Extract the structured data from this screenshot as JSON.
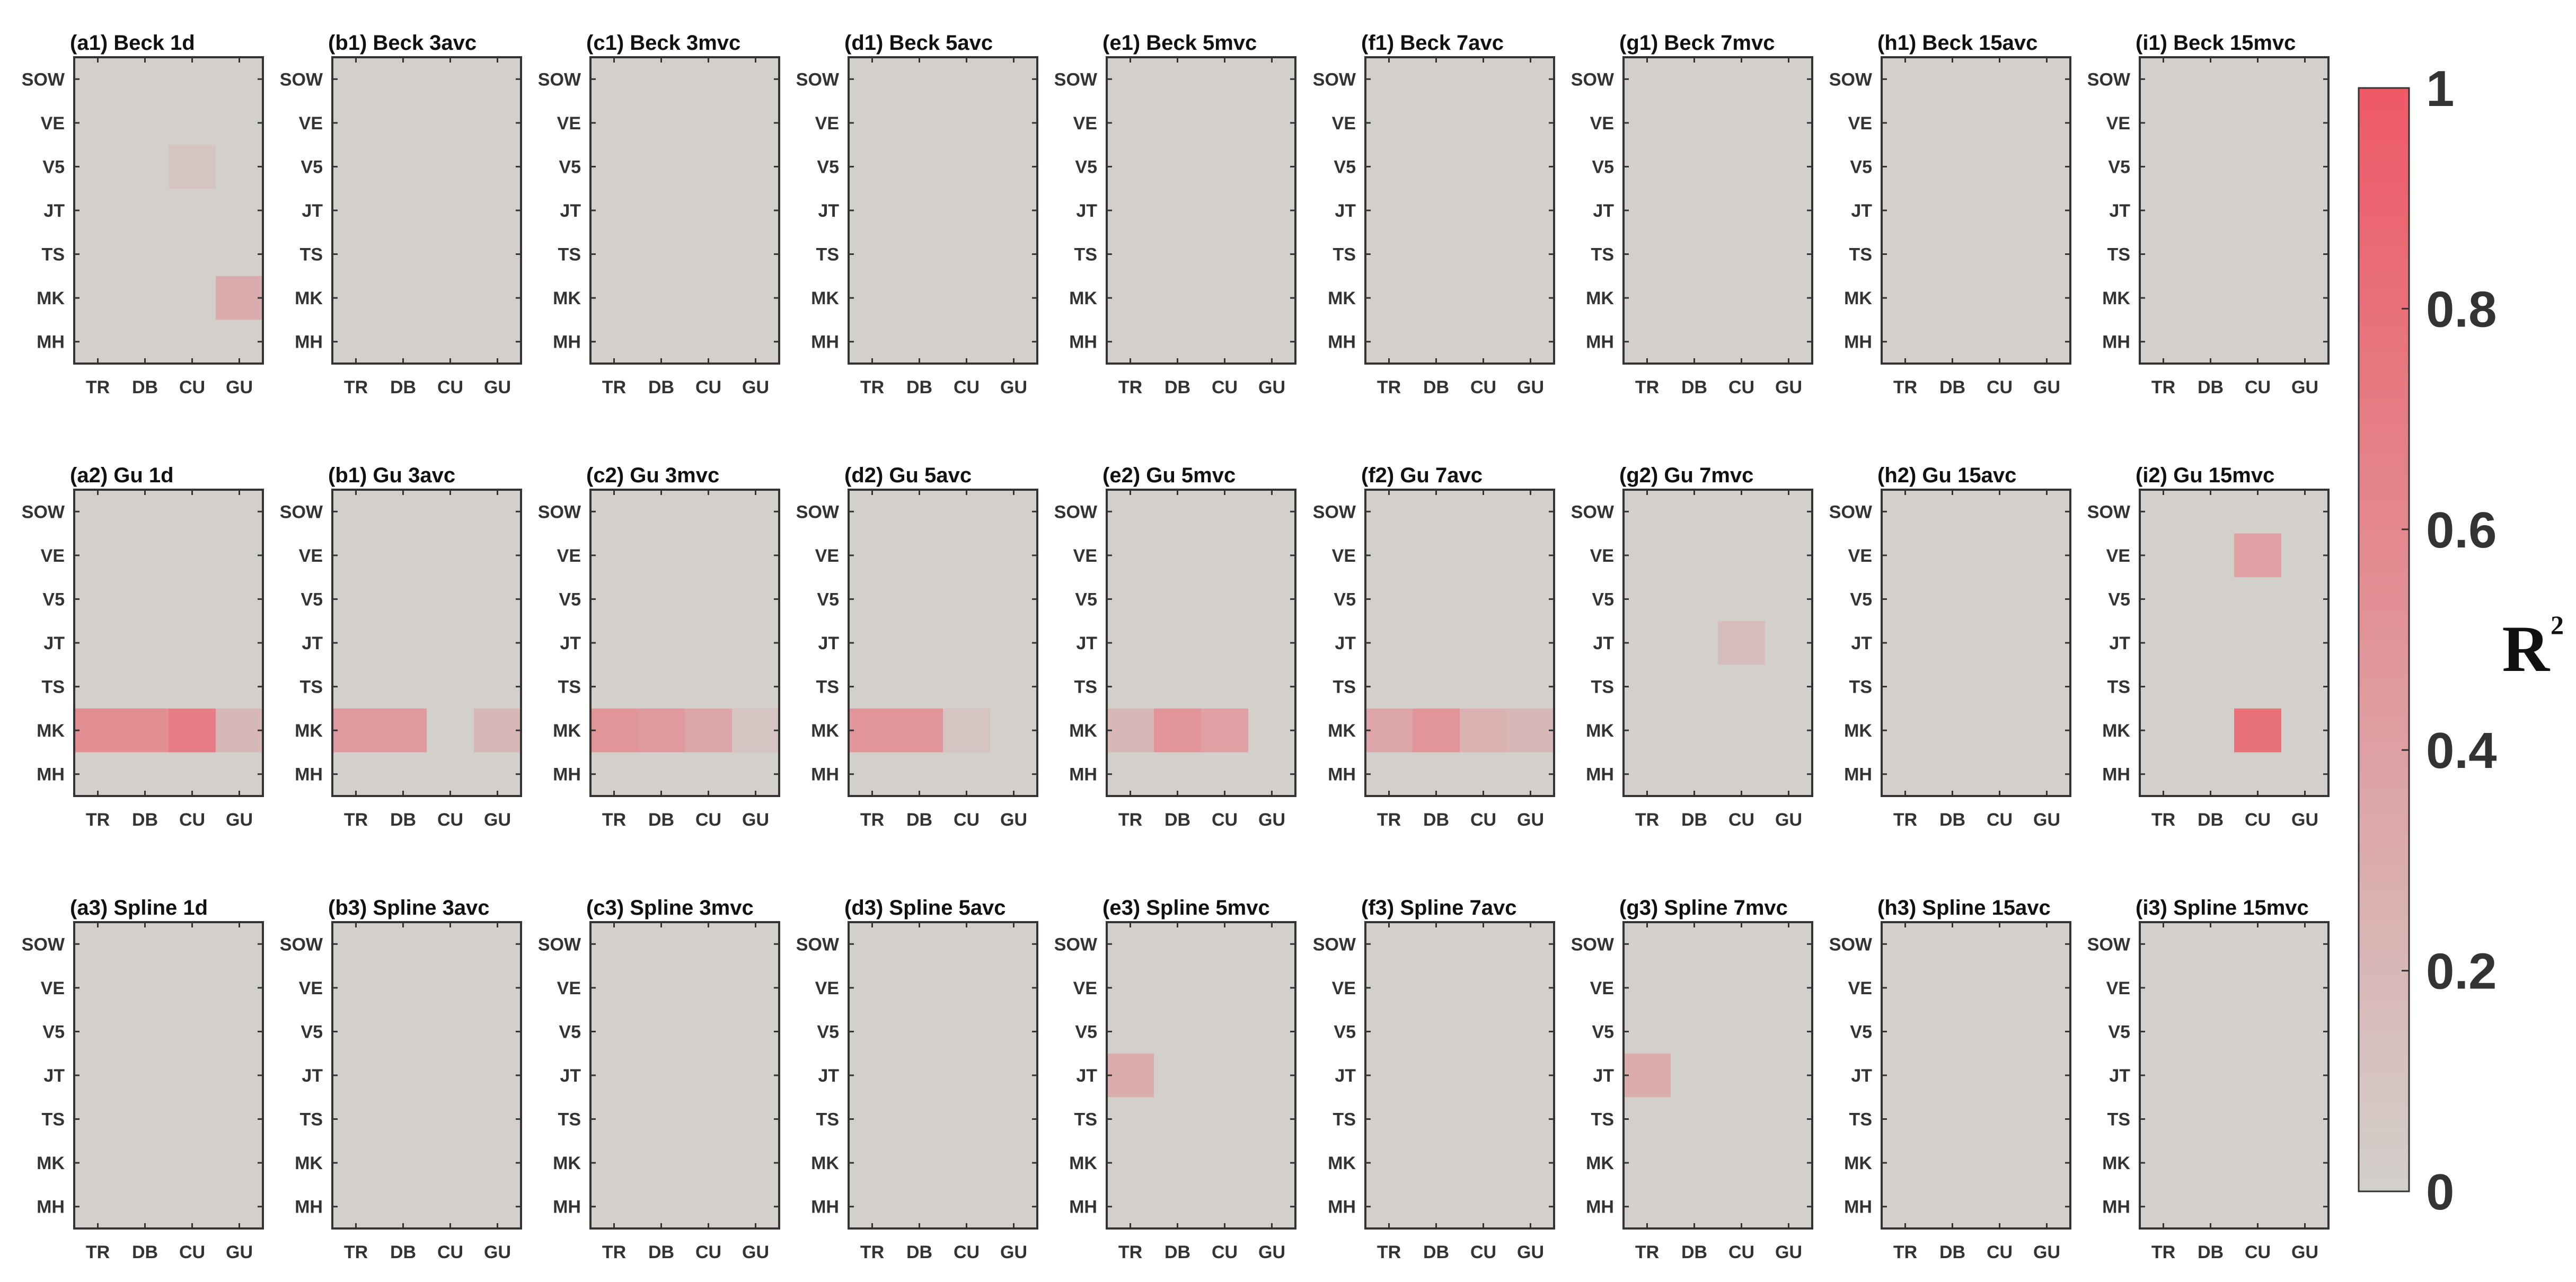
{
  "chart_data": {
    "type": "heatmap",
    "x_categories": [
      "TR",
      "DB",
      "CU",
      "GU"
    ],
    "y_categories": [
      "SOW",
      "VE",
      "V5",
      "JT",
      "TS",
      "MK",
      "MH"
    ],
    "zlim": [
      0,
      1
    ],
    "colorbar": {
      "label_main": "R",
      "label_sup": "2",
      "ticks": [
        "0",
        "0.2",
        "0.4",
        "0.6",
        "0.8",
        "1"
      ],
      "tick_values": [
        0,
        0.2,
        0.4,
        0.6,
        0.8,
        1
      ],
      "colors": {
        "low": "#d3d0cb",
        "high": "#ee5966"
      },
      "placement": "right"
    },
    "panels": [
      {
        "title": "(a1) Beck 1d",
        "cells": [
          {
            "y": "V5",
            "x": "CU",
            "v": 0.1
          },
          {
            "y": "MK",
            "x": "GU",
            "v": 0.3
          }
        ]
      },
      {
        "title": "(b1) Beck 3avc",
        "cells": []
      },
      {
        "title": "(c1) Beck 3mvc",
        "cells": []
      },
      {
        "title": "(d1) Beck 5avc",
        "cells": []
      },
      {
        "title": "(e1) Beck 5mvc",
        "cells": []
      },
      {
        "title": "(f1) Beck 7avc",
        "cells": []
      },
      {
        "title": "(g1) Beck 7mvc",
        "cells": []
      },
      {
        "title": "(h1) Beck 15avc",
        "cells": []
      },
      {
        "title": "(i1) Beck 15mvc",
        "cells": []
      },
      {
        "title": "(a2) Gu 1d",
        "cells": [
          {
            "y": "MK",
            "x": "TR",
            "v": 0.55
          },
          {
            "y": "MK",
            "x": "DB",
            "v": 0.55
          },
          {
            "y": "MK",
            "x": "CU",
            "v": 0.7
          },
          {
            "y": "MK",
            "x": "GU",
            "v": 0.2
          }
        ]
      },
      {
        "title": "(b1) Gu 3avc",
        "cells": [
          {
            "y": "MK",
            "x": "TR",
            "v": 0.45
          },
          {
            "y": "MK",
            "x": "DB",
            "v": 0.45
          },
          {
            "y": "MK",
            "x": "GU",
            "v": 0.2
          }
        ]
      },
      {
        "title": "(c2) Gu 3mvc",
        "cells": [
          {
            "y": "MK",
            "x": "TR",
            "v": 0.5
          },
          {
            "y": "MK",
            "x": "DB",
            "v": 0.45
          },
          {
            "y": "MK",
            "x": "CU",
            "v": 0.35
          },
          {
            "y": "MK",
            "x": "GU",
            "v": 0.1
          }
        ]
      },
      {
        "title": "(d2) Gu 5avc",
        "cells": [
          {
            "y": "MK",
            "x": "TR",
            "v": 0.5
          },
          {
            "y": "MK",
            "x": "DB",
            "v": 0.5
          },
          {
            "y": "MK",
            "x": "CU",
            "v": 0.1
          }
        ]
      },
      {
        "title": "(e2) Gu 5mvc",
        "cells": [
          {
            "y": "MK",
            "x": "TR",
            "v": 0.2
          },
          {
            "y": "MK",
            "x": "DB",
            "v": 0.5
          },
          {
            "y": "MK",
            "x": "CU",
            "v": 0.4
          }
        ]
      },
      {
        "title": "(f2) Gu 7avc",
        "cells": [
          {
            "y": "MK",
            "x": "TR",
            "v": 0.35
          },
          {
            "y": "MK",
            "x": "DB",
            "v": 0.5
          },
          {
            "y": "MK",
            "x": "CU",
            "v": 0.25
          },
          {
            "y": "MK",
            "x": "GU",
            "v": 0.2
          }
        ]
      },
      {
        "title": "(g2) Gu 7mvc",
        "cells": [
          {
            "y": "JT",
            "x": "CU",
            "v": 0.15
          }
        ]
      },
      {
        "title": "(h2) Gu 15avc",
        "cells": []
      },
      {
        "title": "(i2) Gu 15mvc",
        "cells": [
          {
            "y": "VE",
            "x": "CU",
            "v": 0.4
          },
          {
            "y": "MK",
            "x": "CU",
            "v": 0.8
          }
        ]
      },
      {
        "title": "(a3) Spline 1d",
        "cells": []
      },
      {
        "title": "(b3) Spline 3avc",
        "cells": []
      },
      {
        "title": "(c3) Spline 3mvc",
        "cells": []
      },
      {
        "title": "(d3) Spline 5avc",
        "cells": []
      },
      {
        "title": "(e3) Spline 5mvc",
        "cells": [
          {
            "y": "JT",
            "x": "TR",
            "v": 0.3
          }
        ]
      },
      {
        "title": "(f3) Spline 7avc",
        "cells": []
      },
      {
        "title": "(g3) Spline 7mvc",
        "cells": [
          {
            "y": "JT",
            "x": "TR",
            "v": 0.3
          }
        ]
      },
      {
        "title": "(h3) Spline 15avc",
        "cells": []
      },
      {
        "title": "(i3) Spline 15mvc",
        "cells": []
      }
    ]
  }
}
